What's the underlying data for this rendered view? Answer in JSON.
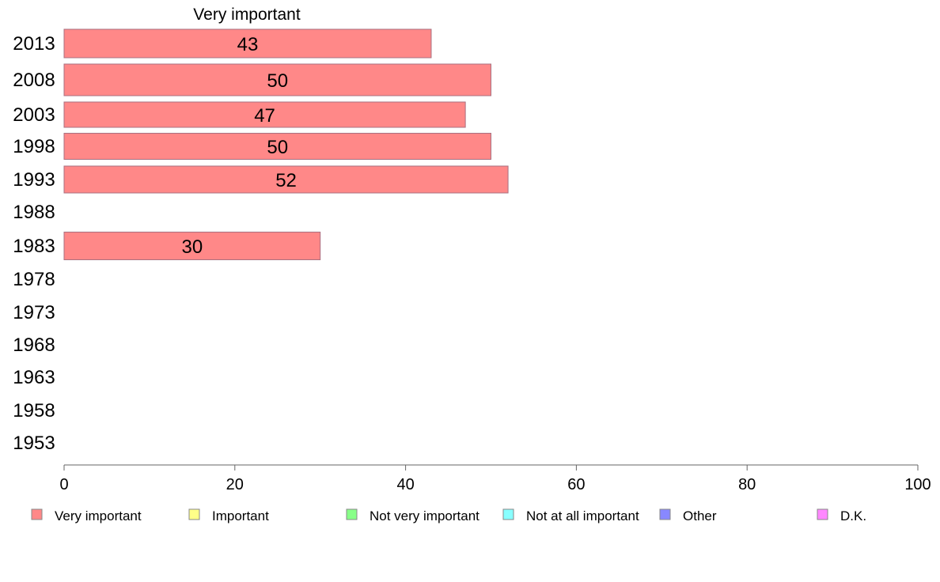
{
  "chart_data": {
    "type": "bar",
    "orientation": "horizontal",
    "title": "Very important",
    "categories": [
      "2013",
      "2008",
      "2003",
      "1998",
      "1993",
      "1988",
      "1983",
      "1978",
      "1973",
      "1968",
      "1963",
      "1958",
      "1953"
    ],
    "series": [
      {
        "name": "Very important",
        "color": "#ff8888",
        "values": [
          43,
          50,
          47,
          50,
          52,
          null,
          30,
          null,
          null,
          null,
          null,
          null,
          null
        ]
      }
    ],
    "data_labels": [
      "43",
      "50",
      "47",
      "50",
      "52",
      "",
      "30",
      "",
      "",
      "",
      "",
      "",
      ""
    ],
    "xlim": [
      0,
      100
    ],
    "xticks": [
      0,
      20,
      40,
      60,
      80,
      100
    ],
    "xtick_labels": [
      "0",
      "20",
      "40",
      "60",
      "80",
      "100"
    ],
    "grid": false,
    "legend_position": "bottom",
    "legend": [
      {
        "label": "Very important",
        "color": "#ff8888"
      },
      {
        "label": "Important",
        "color": "#ffff88"
      },
      {
        "label": "Not very important",
        "color": "#88ff88"
      },
      {
        "label": "Not at all important",
        "color": "#88ffff"
      },
      {
        "label": "Other",
        "color": "#8888ff"
      },
      {
        "label": "D.K.",
        "color": "#ff88ff"
      }
    ]
  }
}
